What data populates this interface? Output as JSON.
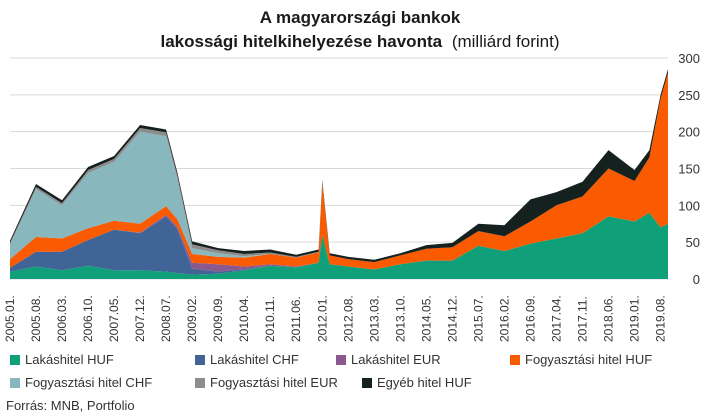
{
  "chart_data": {
    "type": "area",
    "title_line1": "A magyarországi bankok",
    "title_line2_bold": "lakossági hitelkihelyezése havonta",
    "title_line2_unit": "(milliárd forint)",
    "source": "Forrás: MNB, Portfolio",
    "ylim": [
      0,
      300
    ],
    "yticks": [
      "0",
      "50",
      "100",
      "150",
      "200",
      "250",
      "300"
    ],
    "xtick_labels": [
      "2005.01.",
      "2005.08.",
      "2006.03.",
      "2006.10.",
      "2007.05.",
      "2007.12.",
      "2008.07.",
      "2009.02.",
      "2009.09.",
      "2010.04.",
      "2010.11.",
      "2011.06.",
      "2012.01.",
      "2012.08.",
      "2013.03.",
      "2013.10.",
      "2014.05.",
      "2014.12.",
      "2015.07.",
      "2016.02.",
      "2016.09.",
      "2017.04.",
      "2017.11.",
      "2018.06.",
      "2019.01.",
      "2019.08."
    ],
    "x": [
      "2005.01.",
      "2005.08.",
      "2006.03.",
      "2006.10.",
      "2007.05.",
      "2007.12.",
      "2008.07.",
      "2008.10.",
      "2009.02.",
      "2009.09.",
      "2010.04.",
      "2010.11.",
      "2011.06.",
      "2011.12.",
      "2012.01.",
      "2012.03.",
      "2012.08.",
      "2013.03.",
      "2013.10.",
      "2014.05.",
      "2014.12.",
      "2015.07.",
      "2016.02.",
      "2016.09.",
      "2017.04.",
      "2017.11.",
      "2018.06.",
      "2019.01.",
      "2019.05.",
      "2019.08.",
      "2019.10."
    ],
    "series": [
      {
        "name": "Lakáshitel HUF",
        "color": "#0fa07a",
        "values": [
          10,
          17,
          12,
          18,
          12,
          12,
          10,
          8,
          6,
          7,
          12,
          18,
          16,
          22,
          60,
          20,
          17,
          13,
          20,
          25,
          25,
          45,
          38,
          48,
          55,
          62,
          85,
          78,
          90,
          70,
          75
        ]
      },
      {
        "name": "Lakáshitel CHF",
        "color": "#3f6495",
        "values": [
          5,
          20,
          25,
          35,
          55,
          50,
          75,
          60,
          8,
          3,
          1,
          0,
          0,
          0,
          0,
          0,
          0,
          0,
          0,
          0,
          0,
          0,
          0,
          0,
          0,
          0,
          0,
          0,
          0,
          0,
          0
        ]
      },
      {
        "name": "Lakáshitel EUR",
        "color": "#8a5a8e",
        "values": [
          0,
          0,
          0,
          0,
          0,
          1,
          2,
          3,
          8,
          10,
          4,
          2,
          1,
          0,
          0,
          0,
          0,
          0,
          0,
          0,
          0,
          0,
          0,
          0,
          0,
          0,
          0,
          0,
          0,
          0,
          0
        ]
      },
      {
        "name": "Fogyasztási hitel HUF",
        "color": "#fa5a00",
        "values": [
          12,
          20,
          18,
          16,
          12,
          12,
          12,
          10,
          12,
          10,
          12,
          14,
          12,
          14,
          70,
          12,
          10,
          10,
          12,
          16,
          18,
          20,
          20,
          30,
          45,
          50,
          65,
          55,
          75,
          175,
          205
        ]
      },
      {
        "name": "Fogyasztási hitel CHF",
        "color": "#88b7bd",
        "values": [
          20,
          65,
          45,
          75,
          80,
          125,
          95,
          55,
          8,
          5,
          2,
          0,
          0,
          0,
          0,
          0,
          0,
          0,
          0,
          0,
          0,
          0,
          0,
          0,
          0,
          0,
          0,
          0,
          0,
          0,
          0
        ]
      },
      {
        "name": "Fogyasztási hitel EUR",
        "color": "#8c8c8c",
        "values": [
          2,
          3,
          3,
          4,
          4,
          5,
          5,
          5,
          5,
          4,
          3,
          2,
          1,
          1,
          1,
          0,
          0,
          0,
          0,
          0,
          0,
          0,
          0,
          0,
          0,
          0,
          0,
          0,
          0,
          0,
          0
        ]
      },
      {
        "name": "Egyéb hitel HUF",
        "color": "#15211f",
        "values": [
          3,
          4,
          4,
          4,
          4,
          4,
          4,
          4,
          4,
          3,
          4,
          4,
          3,
          3,
          3,
          3,
          3,
          3,
          3,
          5,
          6,
          10,
          15,
          30,
          18,
          20,
          25,
          15,
          10,
          5,
          5
        ]
      }
    ]
  }
}
